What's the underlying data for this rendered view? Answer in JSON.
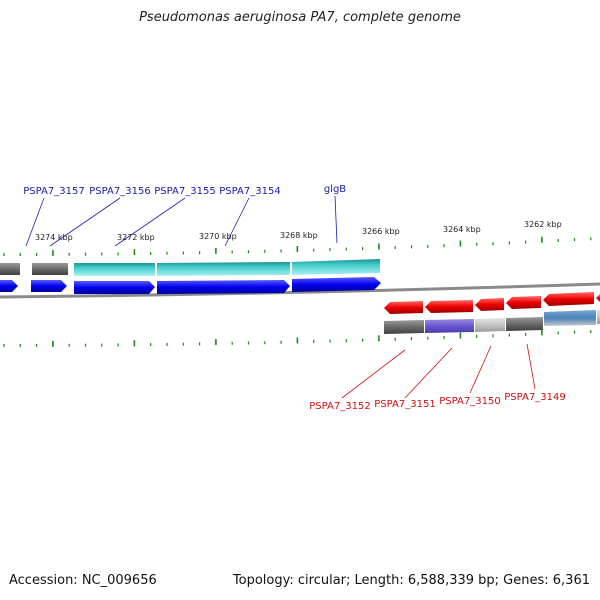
{
  "title": "Pseudomonas aeruginosa PA7, complete genome",
  "footer": {
    "accession": "Accession: NC_009656",
    "summary": "Topology: circular; Length: 6,588,339 bp; Genes: 6,361"
  },
  "colors": {
    "forward_gene": "#1a1aff",
    "reverse_gene": "#ff1a1a",
    "forward_label": "#1a1ab0",
    "reverse_label": "#d01010",
    "tick": "#1a8a1a",
    "backbone": "#888888",
    "feature_grey": "#6e6e6e",
    "feature_cyan": "#33cccc",
    "feature_purple": "#7a6ad0",
    "feature_lightgrey": "#c8c8c8",
    "feature_steel": "#5588bb"
  },
  "scale": {
    "unit": "kbp",
    "labels": [
      "3274 kbp",
      "3272 kbp",
      "3270 kbp",
      "3268 kbp",
      "3266 kbp",
      "3264 kbp",
      "3262 kbp"
    ]
  },
  "forward_genes": [
    {
      "label": "PSPA7_3157"
    },
    {
      "label": "PSPA7_3156"
    },
    {
      "label": "PSPA7_3155"
    },
    {
      "label": "PSPA7_3154"
    },
    {
      "label": "glgB"
    }
  ],
  "reverse_genes": [
    {
      "label": "PSPA7_3152"
    },
    {
      "label": "PSPA7_3151"
    },
    {
      "label": "PSPA7_3150"
    },
    {
      "label": "PSPA7_3149"
    }
  ]
}
